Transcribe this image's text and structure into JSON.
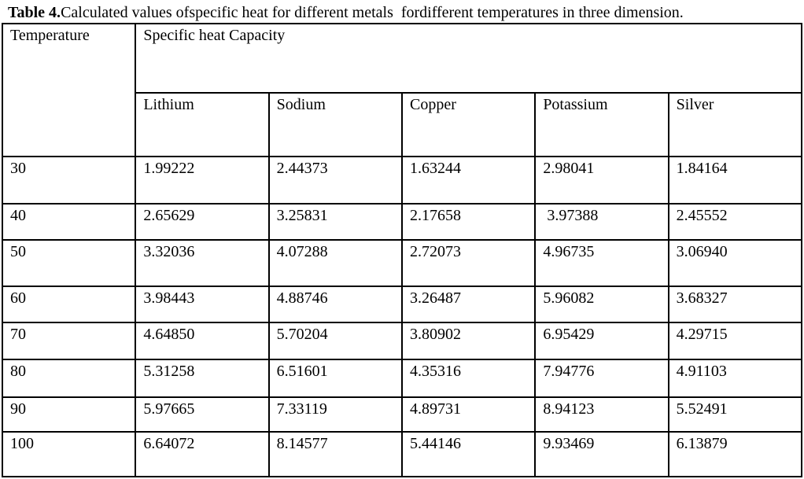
{
  "page": {
    "title_bold": "Table 4.",
    "title_rest": "Calculated values ofspecific heat for different metals  fordifferent temperatures in three dimension."
  },
  "table": {
    "col1_header": "Temperature",
    "group_header": "Specific heat Capacity",
    "metal_headers": [
      "Lithium",
      "Sodium",
      "Copper",
      "Potassium",
      "Silver"
    ],
    "rows": [
      {
        "temperature": "30",
        "values": [
          "1.99222",
          "2.44373",
          "1.63244",
          "2.98041",
          "1.84164"
        ]
      },
      {
        "temperature": "40",
        "values": [
          "2.65629",
          "3.25831",
          "2.17658",
          " 3.97388",
          "2.45552"
        ]
      },
      {
        "temperature": "50",
        "values": [
          "3.32036",
          "4.07288",
          "2.72073",
          "4.96735",
          "3.06940"
        ]
      },
      {
        "temperature": "60",
        "values": [
          "3.98443",
          "4.88746",
          "3.26487",
          "5.96082",
          "3.68327"
        ]
      },
      {
        "temperature": "70",
        "values": [
          "4.64850",
          "5.70204",
          "3.80902",
          "6.95429",
          "4.29715"
        ]
      },
      {
        "temperature": "80",
        "values": [
          "5.31258",
          "6.51601",
          "4.35316",
          "7.94776",
          "4.91103"
        ]
      },
      {
        "temperature": "90",
        "values": [
          "5.97665",
          "7.33119",
          "4.89731",
          "8.94123",
          "5.52491"
        ]
      },
      {
        "temperature": "100",
        "values": [
          "6.64072",
          "8.14577",
          "5.44146",
          "9.93469",
          "6.13879"
        ]
      }
    ]
  },
  "chart_data": {
    "type": "table",
    "title": "Table 4. Calculated values of specific heat for different metals for different temperatures in three dimension",
    "categories": [
      30,
      40,
      50,
      60,
      70,
      80,
      90,
      100
    ],
    "xlabel": "Temperature",
    "ylabel": "Specific heat Capacity",
    "series": [
      {
        "name": "Lithium",
        "values": [
          1.99222,
          2.65629,
          3.32036,
          3.98443,
          4.6485,
          5.31258,
          5.97665,
          6.64072
        ]
      },
      {
        "name": "Sodium",
        "values": [
          2.44373,
          3.25831,
          4.07288,
          4.88746,
          5.70204,
          6.51601,
          7.33119,
          8.14577
        ]
      },
      {
        "name": "Copper",
        "values": [
          1.63244,
          2.17658,
          2.72073,
          3.26487,
          3.80902,
          4.35316,
          4.89731,
          5.44146
        ]
      },
      {
        "name": "Potassium",
        "values": [
          2.98041,
          3.97388,
          4.96735,
          5.96082,
          6.95429,
          7.94776,
          8.94123,
          9.93469
        ]
      },
      {
        "name": "Silver",
        "values": [
          1.84164,
          2.45552,
          3.0694,
          3.68327,
          4.29715,
          4.91103,
          5.52491,
          6.13879
        ]
      }
    ]
  }
}
